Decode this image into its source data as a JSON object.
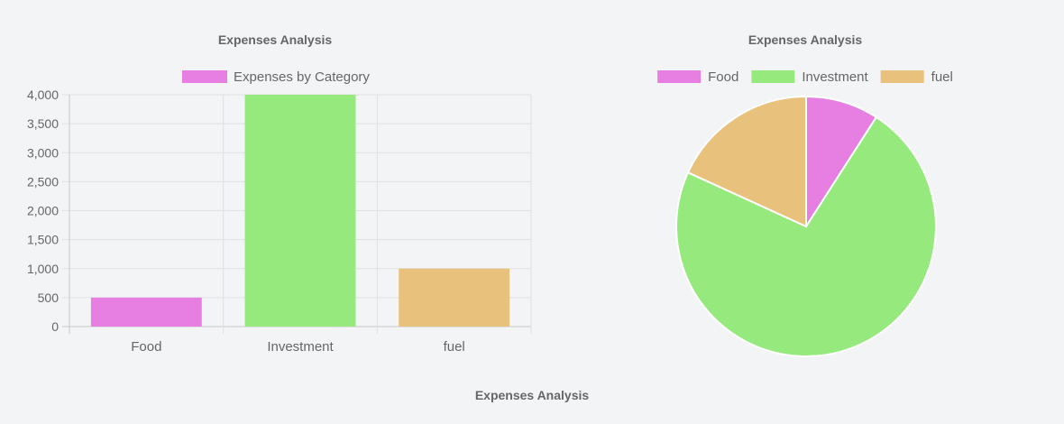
{
  "footer_title": "Expenses Analysis",
  "chart_data": [
    {
      "type": "bar",
      "title": "Expenses Analysis",
      "legend": {
        "placement": "top",
        "entries": [
          {
            "label": "Expenses by Category",
            "color": "#e77fe2"
          }
        ]
      },
      "categories": [
        "Food",
        "Investment",
        "fuel"
      ],
      "series": [
        {
          "name": "Expenses by Category",
          "values": [
            500,
            4000,
            1000
          ]
        }
      ],
      "colors": [
        "#e77fe2",
        "#96ea7d",
        "#e8c27d"
      ],
      "ylim": [
        0,
        4000
      ],
      "yticks": [
        "0",
        "500",
        "1,000",
        "1,500",
        "2,000",
        "2,500",
        "3,000",
        "3,500",
        "4,000"
      ],
      "grid": true,
      "xlabel": "",
      "ylabel": ""
    },
    {
      "type": "pie",
      "title": "Expenses Analysis",
      "legend": {
        "placement": "top"
      },
      "labels": [
        "Food",
        "Investment",
        "fuel"
      ],
      "values": [
        500,
        4000,
        1000
      ],
      "colors": [
        "#e77fe2",
        "#96ea7d",
        "#e8c27d"
      ]
    }
  ]
}
